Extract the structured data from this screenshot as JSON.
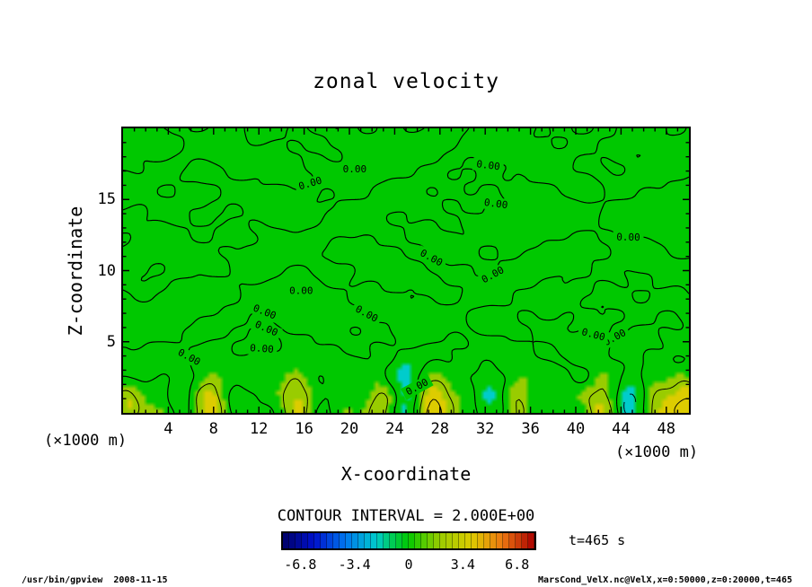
{
  "colors": {
    "background": "#ffffff",
    "field_green": "#00c800",
    "contour_line": "#000000",
    "frame": "#000000"
  },
  "figure": {
    "title": "zonal velocity",
    "x_axis": {
      "label": "X-coordinate",
      "unit": "(×1000 m)",
      "ticks": [
        4,
        8,
        12,
        16,
        20,
        24,
        28,
        32,
        36,
        40,
        44,
        48
      ]
    },
    "y_axis": {
      "label": "Z-coordinate",
      "unit": "(×1000 m)",
      "ticks": [
        5,
        10,
        15
      ]
    },
    "contour_note": "CONTOUR INTERVAL = 2.000E+00",
    "time_label": "t=465 s",
    "colorbar": {
      "tick_labels": [
        "-6.8",
        "-3.4",
        "0",
        "3.4",
        "6.8"
      ]
    }
  },
  "footer": {
    "left": "/usr/bin/gpview  2008-11-15",
    "right": "MarsCond_VelX.nc@VelX,x=0:50000,z=0:20000,t=465"
  },
  "chart_data": {
    "type": "heatmap",
    "title": "zonal velocity",
    "xlabel": "X-coordinate",
    "ylabel": "Z-coordinate",
    "x_unit": "×1000 m",
    "y_unit": "×1000 m",
    "xlim": [
      0,
      50
    ],
    "ylim": [
      0,
      20
    ],
    "x_ticks": [
      4,
      8,
      12,
      16,
      20,
      24,
      28,
      32,
      36,
      40,
      44,
      48
    ],
    "y_ticks": [
      5,
      10,
      15
    ],
    "contour_interval": 2.0,
    "labeled_contour_level": 0.0,
    "contour_label_text": "0.00",
    "negative_contours_dashed": true,
    "colorbar": {
      "min": -6.8,
      "max": 6.8,
      "ticks": [
        -6.8,
        -3.4,
        0,
        3.4,
        6.8
      ]
    },
    "time_value": 465,
    "time_unit": "s",
    "field_summary": "Zonal velocity is approximately 0 (uniform green, |u|<2) over most of the 0-50 x 0-20 domain, crossed by many meandering, horizontally elongated 0.00 contour lines; wave-like perturbations of roughly +2 to +4 (yellow-green patches) and -2 to -4 (small cyan patches ringed by dashed negative contours) are confined below z of about 4 (x1000 m).",
    "contour_label_anchors": [
      [
        16.5,
        16.1
      ],
      [
        20.2,
        17.0
      ],
      [
        32.2,
        18.1
      ],
      [
        33.0,
        14.7
      ],
      [
        44.7,
        12.2
      ],
      [
        27.5,
        11.4
      ],
      [
        16.0,
        9.3
      ],
      [
        32.9,
        9.1
      ],
      [
        12.6,
        7.3
      ],
      [
        21.7,
        6.9
      ],
      [
        12.6,
        5.8
      ],
      [
        43.7,
        4.9
      ],
      [
        12.2,
        4.2
      ],
      [
        27.2,
        1.8
      ],
      [
        41.5,
        4.9
      ],
      [
        5.0,
        3.9
      ]
    ],
    "colormap": [
      {
        "v": -8,
        "c": "#000066"
      },
      {
        "v": -6,
        "c": "#0011cc"
      },
      {
        "v": -4,
        "c": "#0077ee"
      },
      {
        "v": -2,
        "c": "#00cccc"
      },
      {
        "v": -1,
        "c": "#00cc55"
      },
      {
        "v": 0,
        "c": "#00c800"
      },
      {
        "v": 1,
        "c": "#55cc00"
      },
      {
        "v": 2,
        "c": "#99cc00"
      },
      {
        "v": 4,
        "c": "#ddcc00"
      },
      {
        "v": 6,
        "c": "#ee7711"
      },
      {
        "v": 8,
        "c": "#aa0000"
      }
    ]
  }
}
